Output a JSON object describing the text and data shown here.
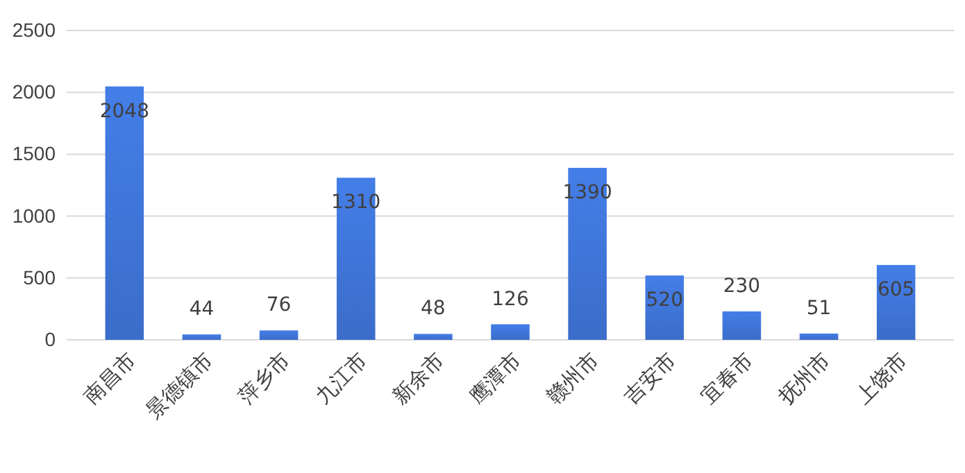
{
  "chart_data": {
    "type": "bar",
    "categories": [
      "南昌市",
      "景德镇市",
      "萍乡市",
      "九江市",
      "新余市",
      "鹰潭市",
      "赣州市",
      "吉安市",
      "宜春市",
      "抚州市",
      "上饶市"
    ],
    "values": [
      2048,
      44,
      76,
      1310,
      48,
      126,
      1390,
      520,
      230,
      51,
      605
    ],
    "color": "#3b6dc9",
    "ylim": [
      0,
      2500
    ],
    "yticks": [
      0,
      500,
      1000,
      1500,
      2000,
      2500
    ],
    "grid": "y",
    "data_labels": true
  }
}
